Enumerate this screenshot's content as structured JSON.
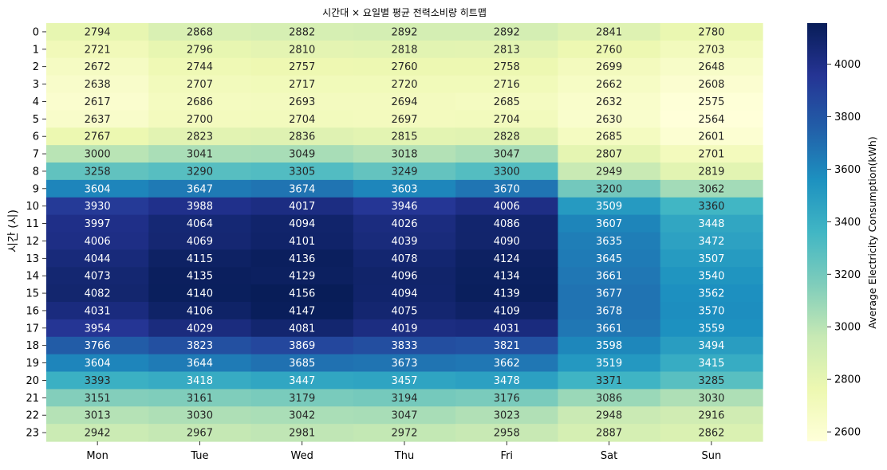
{
  "chart_data": {
    "type": "heatmap",
    "title": "시간대 × 요일별 평균 전력소비량 히트맵",
    "xlabel": "",
    "ylabel": "시간 (시)",
    "colorbar_label": "Average Electricity Consumption(kWh)",
    "colormap": "YlGnBu",
    "colorbar_range": [
      2564,
      4156
    ],
    "colorbar_ticks": [
      "2600",
      "2800",
      "3000",
      "3200",
      "3400",
      "3600",
      "3800",
      "4000"
    ],
    "x_categories": [
      "Mon",
      "Tue",
      "Wed",
      "Thu",
      "Fri",
      "Sat",
      "Sun"
    ],
    "y_categories": [
      "0",
      "1",
      "2",
      "3",
      "4",
      "5",
      "6",
      "7",
      "8",
      "9",
      "10",
      "11",
      "12",
      "13",
      "14",
      "15",
      "16",
      "17",
      "18",
      "19",
      "20",
      "21",
      "22",
      "23"
    ],
    "values": [
      [
        2794,
        2868,
        2882,
        2892,
        2892,
        2841,
        2780
      ],
      [
        2721,
        2796,
        2810,
        2818,
        2813,
        2760,
        2703
      ],
      [
        2672,
        2744,
        2757,
        2760,
        2758,
        2699,
        2648
      ],
      [
        2638,
        2707,
        2717,
        2720,
        2716,
        2662,
        2608
      ],
      [
        2617,
        2686,
        2693,
        2694,
        2685,
        2632,
        2575
      ],
      [
        2637,
        2700,
        2704,
        2697,
        2704,
        2630,
        2564
      ],
      [
        2767,
        2823,
        2836,
        2815,
        2828,
        2685,
        2601
      ],
      [
        3000,
        3041,
        3049,
        3018,
        3047,
        2807,
        2701
      ],
      [
        3258,
        3290,
        3305,
        3249,
        3300,
        2949,
        2819
      ],
      [
        3604,
        3647,
        3674,
        3603,
        3670,
        3200,
        3062
      ],
      [
        3930,
        3988,
        4017,
        3946,
        4006,
        3509,
        3360
      ],
      [
        3997,
        4064,
        4094,
        4026,
        4086,
        3607,
        3448
      ],
      [
        4006,
        4069,
        4101,
        4039,
        4090,
        3635,
        3472
      ],
      [
        4044,
        4115,
        4136,
        4078,
        4124,
        3645,
        3507
      ],
      [
        4073,
        4135,
        4129,
        4096,
        4134,
        3661,
        3540
      ],
      [
        4082,
        4140,
        4156,
        4094,
        4139,
        3677,
        3562
      ],
      [
        4031,
        4106,
        4147,
        4075,
        4109,
        3678,
        3570
      ],
      [
        3954,
        4029,
        4081,
        4019,
        4031,
        3661,
        3559
      ],
      [
        3766,
        3823,
        3869,
        3833,
        3821,
        3598,
        3494
      ],
      [
        3604,
        3644,
        3685,
        3673,
        3662,
        3519,
        3415
      ],
      [
        3393,
        3418,
        3447,
        3457,
        3478,
        3371,
        3285
      ],
      [
        3151,
        3161,
        3179,
        3194,
        3176,
        3086,
        3030
      ],
      [
        3013,
        3030,
        3042,
        3047,
        3023,
        2948,
        2916
      ],
      [
        2942,
        2967,
        2981,
        2972,
        2958,
        2887,
        2862
      ]
    ]
  }
}
